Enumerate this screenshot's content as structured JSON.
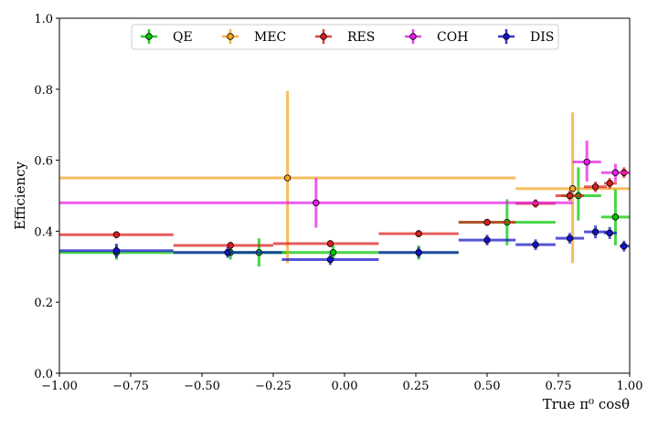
{
  "chart_data": {
    "type": "scatter",
    "title": "",
    "xlabel": "True π⁰ cosθ",
    "ylabel": "Efficiency",
    "xlim": [
      -1.0,
      1.0
    ],
    "ylim": [
      0.0,
      1.0
    ],
    "xticks": [
      "−1.00",
      "−0.75",
      "−0.50",
      "−0.25",
      "0.00",
      "0.25",
      "0.50",
      "0.75",
      "1.00"
    ],
    "yticks": [
      "0.0",
      "0.2",
      "0.4",
      "0.6",
      "0.8",
      "1.0"
    ],
    "grid": false,
    "legend_position": "top",
    "series": [
      {
        "name": "QE",
        "color": "#00c800",
        "points": [
          {
            "x": -0.8,
            "xlo": -1.0,
            "xhi": -0.6,
            "y": 0.34,
            "ylo": 0.32,
            "yhi": 0.36
          },
          {
            "x": -0.4,
            "xlo": -0.6,
            "xhi": -0.2,
            "y": 0.34,
            "ylo": 0.32,
            "yhi": 0.36
          },
          {
            "x": -0.3,
            "xlo": -0.4,
            "xhi": -0.2,
            "y": 0.34,
            "ylo": 0.3,
            "yhi": 0.38
          },
          {
            "x": -0.04,
            "xlo": -0.2,
            "xhi": 0.12,
            "y": 0.34,
            "ylo": 0.32,
            "yhi": 0.36
          },
          {
            "x": 0.26,
            "xlo": 0.12,
            "xhi": 0.4,
            "y": 0.34,
            "ylo": 0.32,
            "yhi": 0.36
          },
          {
            "x": 0.57,
            "xlo": 0.4,
            "xhi": 0.74,
            "y": 0.425,
            "ylo": 0.36,
            "yhi": 0.49
          },
          {
            "x": 0.82,
            "xlo": 0.76,
            "xhi": 0.9,
            "y": 0.5,
            "ylo": 0.43,
            "yhi": 0.58
          },
          {
            "x": 0.95,
            "xlo": 0.9,
            "xhi": 1.0,
            "y": 0.44,
            "ylo": 0.36,
            "yhi": 0.52
          }
        ]
      },
      {
        "name": "MEC",
        "color": "#f5a623",
        "points": [
          {
            "x": -0.2,
            "xlo": -1.0,
            "xhi": 0.6,
            "y": 0.55,
            "ylo": 0.31,
            "yhi": 0.795
          },
          {
            "x": 0.8,
            "xlo": 0.6,
            "xhi": 1.0,
            "y": 0.52,
            "ylo": 0.31,
            "yhi": 0.735
          }
        ]
      },
      {
        "name": "RES",
        "color": "#dc1e1e",
        "points": [
          {
            "x": -0.8,
            "xlo": -1.0,
            "xhi": -0.6,
            "y": 0.39,
            "ylo": 0.38,
            "yhi": 0.4
          },
          {
            "x": -0.4,
            "xlo": -0.6,
            "xhi": -0.25,
            "y": 0.36,
            "ylo": 0.35,
            "yhi": 0.37
          },
          {
            "x": -0.05,
            "xlo": -0.25,
            "xhi": 0.12,
            "y": 0.365,
            "ylo": 0.355,
            "yhi": 0.375
          },
          {
            "x": 0.26,
            "xlo": 0.12,
            "xhi": 0.4,
            "y": 0.393,
            "ylo": 0.383,
            "yhi": 0.403
          },
          {
            "x": 0.5,
            "xlo": 0.4,
            "xhi": 0.6,
            "y": 0.425,
            "ylo": 0.415,
            "yhi": 0.435
          },
          {
            "x": 0.67,
            "xlo": 0.6,
            "xhi": 0.74,
            "y": 0.478,
            "ylo": 0.466,
            "yhi": 0.49
          },
          {
            "x": 0.79,
            "xlo": 0.74,
            "xhi": 0.84,
            "y": 0.5,
            "ylo": 0.486,
            "yhi": 0.514
          },
          {
            "x": 0.88,
            "xlo": 0.84,
            "xhi": 0.92,
            "y": 0.525,
            "ylo": 0.51,
            "yhi": 0.54
          },
          {
            "x": 0.93,
            "xlo": 0.91,
            "xhi": 0.955,
            "y": 0.535,
            "ylo": 0.52,
            "yhi": 0.55
          },
          {
            "x": 0.98,
            "xlo": 0.965,
            "xhi": 1.0,
            "y": 0.565,
            "ylo": 0.55,
            "yhi": 0.58
          }
        ]
      },
      {
        "name": "COH",
        "color": "#e51ee5",
        "points": [
          {
            "x": -0.1,
            "xlo": -1.0,
            "xhi": 0.8,
            "y": 0.48,
            "ylo": 0.41,
            "yhi": 0.55
          },
          {
            "x": 0.85,
            "xlo": 0.8,
            "xhi": 0.9,
            "y": 0.595,
            "ylo": 0.54,
            "yhi": 0.655
          },
          {
            "x": 0.95,
            "xlo": 0.9,
            "xhi": 1.0,
            "y": 0.565,
            "ylo": 0.54,
            "yhi": 0.59
          }
        ]
      },
      {
        "name": "DIS",
        "color": "#1414c8",
        "points": [
          {
            "x": -0.8,
            "xlo": -1.0,
            "xhi": -0.6,
            "y": 0.345,
            "ylo": 0.325,
            "yhi": 0.365
          },
          {
            "x": -0.41,
            "xlo": -0.6,
            "xhi": -0.22,
            "y": 0.34,
            "ylo": 0.325,
            "yhi": 0.355
          },
          {
            "x": -0.05,
            "xlo": -0.22,
            "xhi": 0.12,
            "y": 0.32,
            "ylo": 0.305,
            "yhi": 0.335
          },
          {
            "x": 0.26,
            "xlo": 0.12,
            "xhi": 0.4,
            "y": 0.34,
            "ylo": 0.325,
            "yhi": 0.355
          },
          {
            "x": 0.5,
            "xlo": 0.4,
            "xhi": 0.6,
            "y": 0.375,
            "ylo": 0.36,
            "yhi": 0.39
          },
          {
            "x": 0.67,
            "xlo": 0.6,
            "xhi": 0.74,
            "y": 0.362,
            "ylo": 0.347,
            "yhi": 0.377
          },
          {
            "x": 0.79,
            "xlo": 0.74,
            "xhi": 0.84,
            "y": 0.38,
            "ylo": 0.365,
            "yhi": 0.395
          },
          {
            "x": 0.88,
            "xlo": 0.84,
            "xhi": 0.92,
            "y": 0.398,
            "ylo": 0.38,
            "yhi": 0.416
          },
          {
            "x": 0.93,
            "xlo": 0.91,
            "xhi": 0.955,
            "y": 0.395,
            "ylo": 0.378,
            "yhi": 0.412
          },
          {
            "x": 0.98,
            "xlo": 0.965,
            "xhi": 1.0,
            "y": 0.358,
            "ylo": 0.343,
            "yhi": 0.373
          }
        ]
      }
    ]
  }
}
